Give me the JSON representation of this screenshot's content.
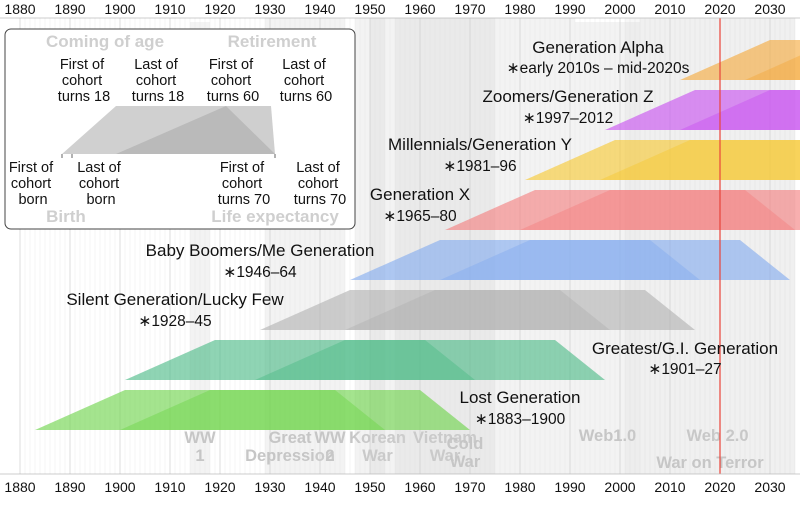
{
  "axis": {
    "year_min": 1880,
    "year_max": 2035,
    "ticks": [
      1880,
      1890,
      1900,
      1910,
      1920,
      1930,
      1940,
      1950,
      1960,
      1970,
      1980,
      1990,
      2000,
      2010,
      2020,
      2030
    ]
  },
  "current_year_marker": 2020,
  "generations": [
    {
      "id": "alpha",
      "title": "Generation Alpha",
      "range": "∗early 2010s – mid-2020s",
      "color": "#f5a93c",
      "born": [
        2012,
        2025
      ],
      "coming_of_age": [
        2030,
        2043
      ],
      "retire": [
        2072,
        2085
      ],
      "death": [
        2082,
        2095
      ],
      "bands": [
        "coming_of_age"
      ]
    },
    {
      "id": "genz",
      "title": "Zoomers/Generation Z",
      "range": "∗1997–2012",
      "color": "#c84ff0",
      "born": [
        1997,
        2012
      ],
      "coming_of_age": [
        2015,
        2030
      ],
      "retire": [
        2057,
        2072
      ],
      "death": [
        2067,
        2082
      ],
      "bands": [
        "coming_of_age"
      ]
    },
    {
      "id": "geny",
      "title": "Millennials/Generation Y",
      "range": "∗1981–96",
      "color": "#f7c831",
      "born": [
        1981,
        1996
      ],
      "coming_of_age": [
        1999,
        2014
      ],
      "retire": [
        2041,
        2056
      ],
      "death": [
        2051,
        2066
      ],
      "bands": [
        "coming_of_age"
      ]
    },
    {
      "id": "genx",
      "title": "Generation X",
      "range": "∗1965–80",
      "color": "#f47e7e",
      "born": [
        1965,
        1980
      ],
      "coming_of_age": [
        1983,
        1998
      ],
      "retire": [
        2025,
        2040
      ],
      "death": [
        2035,
        2050
      ],
      "bands": [
        "coming_of_age"
      ]
    },
    {
      "id": "boomers",
      "title": "Baby Boomers/Me Generation",
      "range": "∗1946–64",
      "color": "#82abef",
      "born": [
        1946,
        1964
      ],
      "coming_of_age": [
        1964,
        1982
      ],
      "retire": [
        2006,
        2024
      ],
      "death": [
        2016,
        2034
      ],
      "bands": [
        "coming_of_age",
        "retire"
      ]
    },
    {
      "id": "silent",
      "title": "Silent Generation/Lucky Few",
      "range": "∗1928–45",
      "color": "#b2b2b2",
      "born": [
        1928,
        1945
      ],
      "coming_of_age": [
        1946,
        1963
      ],
      "retire": [
        1988,
        2005
      ],
      "death": [
        1998,
        2015
      ],
      "bands": [
        "coming_of_age",
        "retire"
      ]
    },
    {
      "id": "gi",
      "title": "Greatest/G.I. Generation",
      "range": "∗1901–27",
      "color": "#4bba86",
      "born": [
        1901,
        1927
      ],
      "coming_of_age": [
        1919,
        1945
      ],
      "retire": [
        1961,
        1987
      ],
      "death": [
        1971,
        1997
      ],
      "bands": [
        "coming_of_age",
        "retire"
      ]
    },
    {
      "id": "lost",
      "title": "Lost Generation",
      "range": "∗1883–1900",
      "color": "#6cd448",
      "born": [
        1883,
        1900
      ],
      "coming_of_age": [
        1901,
        1918
      ],
      "retire": [
        1943,
        1960
      ],
      "death": [
        1953,
        1970
      ],
      "bands": [
        "coming_of_age",
        "retire"
      ]
    }
  ],
  "events": [
    {
      "id": "ww1",
      "line1": "WW",
      "line2": "1",
      "start": 1914,
      "end": 1918
    },
    {
      "id": "great-depression",
      "line1": "Great",
      "line2": "Depression",
      "start": 1929,
      "end": 1939
    },
    {
      "id": "ww2",
      "line1": "WW",
      "line2": "2",
      "start": 1939,
      "end": 1945
    },
    {
      "id": "korean-war",
      "line1": "Korean",
      "line2": "War",
      "start": 1950,
      "end": 1953
    },
    {
      "id": "vietnam-war",
      "line1": "Vietnam",
      "line2": "War",
      "start": 1955,
      "end": 1975
    },
    {
      "id": "cold-war",
      "line1": "Cold",
      "line2": "War",
      "start": 1947,
      "end": 1991
    },
    {
      "id": "web1",
      "line1": "Web1.0",
      "line2": "",
      "start": 1991,
      "end": 2004
    },
    {
      "id": "web2",
      "line1": "Web 2.0",
      "line2": "",
      "start": 2004,
      "end": 2035
    },
    {
      "id": "war-on-terror",
      "line1": "War on Terror",
      "line2": "",
      "start": 2001,
      "end": 2035
    }
  ],
  "legend": {
    "coming_of_age": "Coming of age",
    "retirement": "Retirement",
    "birth": "Birth",
    "life_expectancy": "Life expectancy",
    "first_turns_18": [
      "First of",
      "cohort",
      "turns 18"
    ],
    "last_turns_18": [
      "Last of",
      "cohort",
      "turns 18"
    ],
    "first_turns_60": [
      "First of",
      "cohort",
      "turns 60"
    ],
    "last_turns_60": [
      "Last of",
      "cohort",
      "turns 60"
    ],
    "first_born": [
      "First of",
      "cohort",
      "born"
    ],
    "last_born": [
      "Last of",
      "cohort",
      "born"
    ],
    "first_turns_70": [
      "First of",
      "cohort",
      "turns 70"
    ],
    "last_turns_70": [
      "Last of",
      "cohort",
      "turns 70"
    ]
  }
}
